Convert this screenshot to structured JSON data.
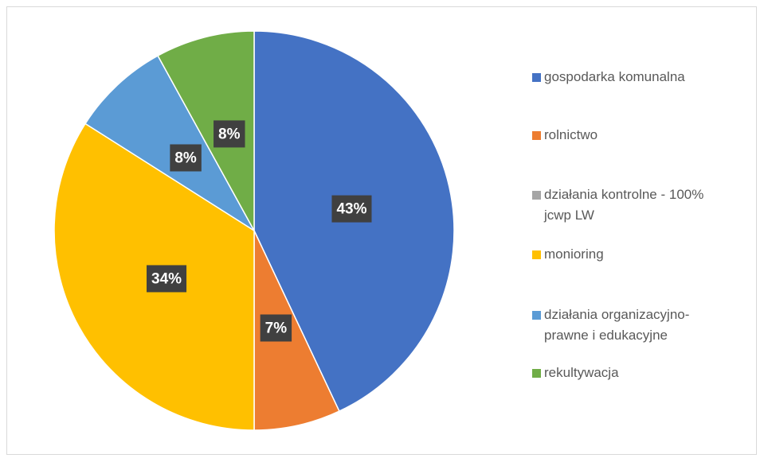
{
  "chart_data": {
    "type": "pie",
    "categories": [
      "gospodarka komunalna",
      "rolnictwo",
      "działania kontrolne - 100% jcwp LW",
      "monioring",
      "działania organizacyjno-prawne i edukacyjne",
      "rekultywacja"
    ],
    "values": [
      43,
      7,
      0,
      34,
      8,
      8
    ],
    "value_labels": [
      "43%",
      "7%",
      null,
      "34%",
      "8%",
      "8%"
    ],
    "colors": [
      "#4472c4",
      "#ed7d31",
      "#a5a5a5",
      "#ffc000",
      "#5b9bd5",
      "#70ad47"
    ],
    "legend": "right"
  }
}
